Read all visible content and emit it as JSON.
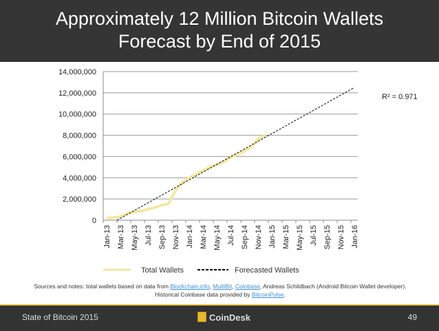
{
  "title_line1": "Approximately 12 Million Bitcoin Wallets",
  "title_line2": "Forecast by End of 2015",
  "chart_data": {
    "type": "line",
    "title": "",
    "x_tick_labels": [
      "Jan-13",
      "Mar-13",
      "May-13",
      "Jul-13",
      "Sep-13",
      "Nov-13",
      "Jan-14",
      "Mar-14",
      "May-14",
      "Jul-14",
      "Sep-14",
      "Nov-14",
      "Jan-15",
      "Mar-15",
      "May-15",
      "Jul-15",
      "Sep-15",
      "Nov-15",
      "Jan-16"
    ],
    "y_tick_labels": [
      "0",
      "2,000,000",
      "4,000,000",
      "6,000,000",
      "8,000,000",
      "10,000,000",
      "12,000,000",
      "14,000,000"
    ],
    "ylim": [
      0,
      14000000
    ],
    "grid": "horizontal",
    "legend": "bottom",
    "series": [
      {
        "name": "Total Wallets",
        "color": "#f2e8a0",
        "x": [
          "Jan-13",
          "Feb-13",
          "Mar-13",
          "Apr-13",
          "May-13",
          "Jun-13",
          "Jul-13",
          "Aug-13",
          "Sep-13",
          "Oct-13",
          "Nov-13",
          "Dec-13",
          "Jan-14",
          "Feb-14",
          "Mar-14",
          "Apr-14",
          "May-14",
          "Jun-14",
          "Jul-14",
          "Aug-14",
          "Sep-14",
          "Oct-14",
          "Nov-14",
          "Dec-14"
        ],
        "values": [
          200000,
          250000,
          320000,
          650000,
          780000,
          860000,
          1030000,
          1190000,
          1420000,
          1550000,
          2800000,
          3560000,
          4000000,
          4340000,
          4660000,
          5000000,
          5240000,
          5500000,
          5900000,
          6200000,
          6500000,
          6900000,
          7660000,
          7960000
        ]
      },
      {
        "name": "Forecasted Wallets",
        "color": "#000000",
        "style": "dashed",
        "x": [
          "Mar-13",
          "Jan-16"
        ],
        "values": [
          0,
          12500000
        ]
      }
    ],
    "annotation": "R² = 0.971"
  },
  "notes": {
    "prefix": "Sources and notes: total wallets based on data from ",
    "l1": "Blockchain.info",
    "sep1": ", ",
    "l2": "MultiBit",
    "sep2": ", ",
    "l3": "Coinbase",
    "mid": ", Andreas Schildbach (Android Bitcoin Wallet developer). Historical Coinbase data provided by ",
    "l4": "BitcoinPulse",
    "end": "."
  },
  "footer": {
    "left": "State of Bitcoin 2015",
    "brand": "CoinDesk",
    "page": "49"
  }
}
